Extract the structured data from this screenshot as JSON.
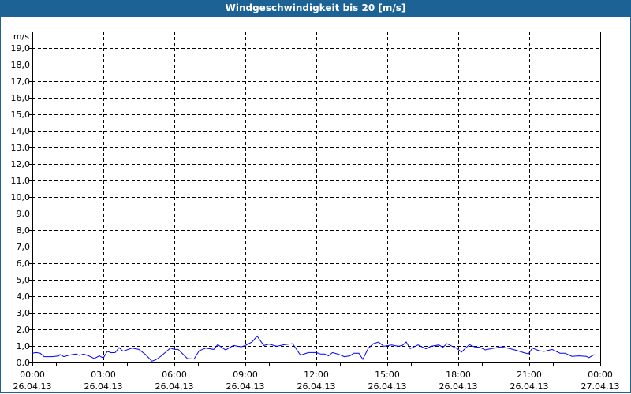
{
  "title": "Windgeschwindigkeit bis 20 [m/s]",
  "colors": {
    "titlebar": "#1d6295",
    "line": "#0000ff",
    "grid": "#000000"
  },
  "chart_data": {
    "type": "line",
    "title": "Windgeschwindigkeit bis 20 [m/s]",
    "ylabel": "m/s",
    "ylim": [
      0,
      20
    ],
    "yticks": [
      "0,0",
      "1,0",
      "2,0",
      "3,0",
      "4,0",
      "5,0",
      "6,0",
      "7,0",
      "8,0",
      "9,0",
      "10,0",
      "11,0",
      "12,0",
      "13,0",
      "14,0",
      "15,0",
      "16,0",
      "17,0",
      "18,0",
      "19,0"
    ],
    "xlim": [
      "26.04.13 00:00",
      "27.04.13 00:00"
    ],
    "xticks": [
      {
        "time": "00:00",
        "date": "26.04.13"
      },
      {
        "time": "03:00",
        "date": "26.04.13"
      },
      {
        "time": "06:00",
        "date": "26.04.13"
      },
      {
        "time": "09:00",
        "date": "26.04.13"
      },
      {
        "time": "12:00",
        "date": "26.04.13"
      },
      {
        "time": "15:00",
        "date": "26.04.13"
      },
      {
        "time": "18:00",
        "date": "26.04.13"
      },
      {
        "time": "21:00",
        "date": "26.04.13"
      },
      {
        "time": "00:00",
        "date": "27.04.13"
      }
    ],
    "grid": true,
    "series": [
      {
        "x": [
          "00:00",
          "00:10",
          "00:20",
          "00:30",
          "00:50",
          "01:07",
          "01:10",
          "01:20",
          "01:33",
          "01:50",
          "02:00",
          "02:10",
          "02:23",
          "02:37",
          "02:50",
          "03:00",
          "03:10",
          "03:20",
          "03:30",
          "03:40",
          "03:50",
          "04:13",
          "04:30",
          "04:47",
          "05:03",
          "05:13",
          "05:27",
          "05:50",
          "06:00",
          "06:10",
          "06:33",
          "06:50",
          "07:03",
          "07:20",
          "07:40",
          "07:50",
          "08:10",
          "08:30",
          "08:50",
          "09:00",
          "09:17",
          "09:30",
          "09:47",
          "10:00",
          "10:20",
          "10:40",
          "11:00",
          "11:20",
          "11:40",
          "12:00",
          "12:11",
          "12:21",
          "12:31",
          "12:41",
          "12:58",
          "13:11",
          "13:25",
          "13:35",
          "13:48",
          "13:58",
          "14:12",
          "14:25",
          "14:38",
          "14:51",
          "15:11",
          "15:28",
          "15:38",
          "15:48",
          "15:58",
          "16:18",
          "16:38",
          "16:51",
          "17:11",
          "17:21",
          "17:31",
          "17:45",
          "17:58",
          "18:08",
          "18:28",
          "18:41",
          "18:55",
          "19:08",
          "19:31",
          "19:48",
          "20:11",
          "20:31",
          "20:45",
          "20:58",
          "21:08",
          "21:25",
          "21:38",
          "21:58",
          "22:18",
          "22:31",
          "22:48",
          "23:05",
          "23:25",
          "23:31",
          "23:45"
        ],
        "y": [
          0.56,
          0.6,
          0.56,
          0.35,
          0.35,
          0.4,
          0.48,
          0.35,
          0.44,
          0.51,
          0.43,
          0.51,
          0.4,
          0.24,
          0.4,
          0.27,
          0.67,
          0.59,
          0.6,
          0.9,
          0.68,
          0.87,
          0.79,
          0.48,
          0.08,
          0.16,
          0.4,
          0.87,
          0.79,
          0.79,
          0.24,
          0.21,
          0.71,
          0.87,
          0.79,
          1.08,
          0.76,
          1.03,
          0.95,
          1.03,
          1.24,
          1.59,
          1.03,
          1.11,
          0.98,
          1.08,
          1.14,
          0.44,
          0.6,
          0.6,
          0.51,
          0.51,
          0.4,
          0.6,
          0.48,
          0.35,
          0.4,
          0.56,
          0.56,
          0.19,
          0.87,
          1.14,
          1.24,
          0.98,
          1.06,
          0.98,
          1.03,
          1.24,
          0.84,
          1.06,
          0.83,
          0.98,
          1.06,
          0.92,
          1.14,
          0.98,
          0.83,
          0.63,
          1.08,
          0.95,
          0.92,
          0.76,
          0.87,
          0.95,
          0.84,
          0.71,
          0.6,
          0.52,
          0.87,
          0.71,
          0.67,
          0.79,
          0.56,
          0.56,
          0.37,
          0.4,
          0.37,
          0.29,
          0.48
        ]
      }
    ]
  }
}
